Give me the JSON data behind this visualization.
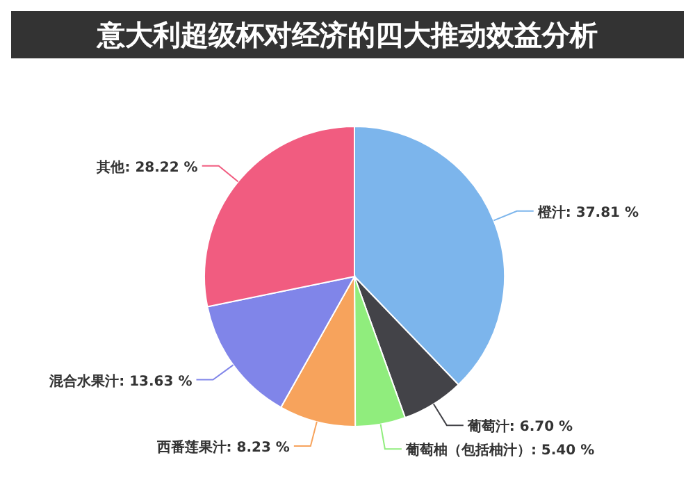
{
  "chart_data": {
    "type": "pie",
    "title": "意大利超级杯对经济的四大推动效益分析",
    "categories": [
      "橙汁",
      "葡萄汁",
      "葡萄柚（包括柚汁）",
      "西番莲果汁",
      "混合水果汁",
      "其他"
    ],
    "values": [
      37.81,
      6.7,
      5.4,
      8.23,
      13.63,
      28.22
    ],
    "value_labels": [
      "37.81 %",
      "6.70 %",
      "5.40 %",
      "8.23 %",
      "13.63 %",
      "28.22 %"
    ],
    "colors": [
      "#7cb5ec",
      "#434348",
      "#90ed7d",
      "#f7a35c",
      "#8085e9",
      "#f15c80"
    ]
  }
}
